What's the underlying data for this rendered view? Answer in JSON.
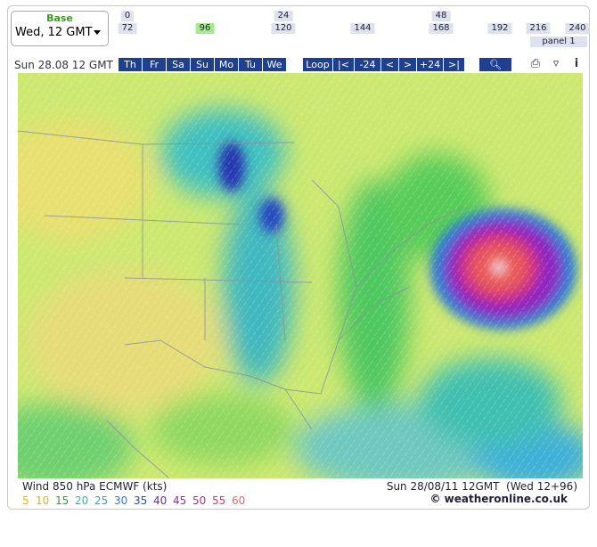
{
  "selector": {
    "label": "Base",
    "value": "Wed, 12 GMT"
  },
  "hours": [
    "0",
    "24",
    "48",
    "72",
    "96",
    "120",
    "144",
    "168",
    "192",
    "216",
    "240"
  ],
  "selected_hour": "96",
  "panel": "panel 1",
  "date": "Sun 28.08 12 GMT",
  "days": [
    "Th",
    "Fr",
    "Sa",
    "Su",
    "Mo",
    "Tu",
    "We"
  ],
  "controls": [
    "Loop",
    "|<",
    "-24",
    "<",
    ">",
    "+24",
    ">|"
  ],
  "caption": {
    "title": "Wind 850 hPa ECMWF (kts)",
    "run": "Sun 28/08/11 12GMT  (Wed 12+96)",
    "copyright": "© weatheronline.co.uk"
  },
  "legend": [
    {
      "value": 5,
      "color": "#e8b800"
    },
    {
      "value": 10,
      "color": "#c8c400"
    },
    {
      "value": 15,
      "color": "#20a820"
    },
    {
      "value": 20,
      "color": "#20c0a0"
    },
    {
      "value": 25,
      "color": "#20a8d8"
    },
    {
      "value": 30,
      "color": "#2080e0"
    },
    {
      "value": 35,
      "color": "#2848b8"
    },
    {
      "value": 40,
      "color": "#6828c0"
    },
    {
      "value": 45,
      "color": "#a020c0"
    },
    {
      "value": 50,
      "color": "#c02890"
    },
    {
      "value": 55,
      "color": "#e03060"
    },
    {
      "value": 60,
      "color": "#e06868"
    }
  ]
}
